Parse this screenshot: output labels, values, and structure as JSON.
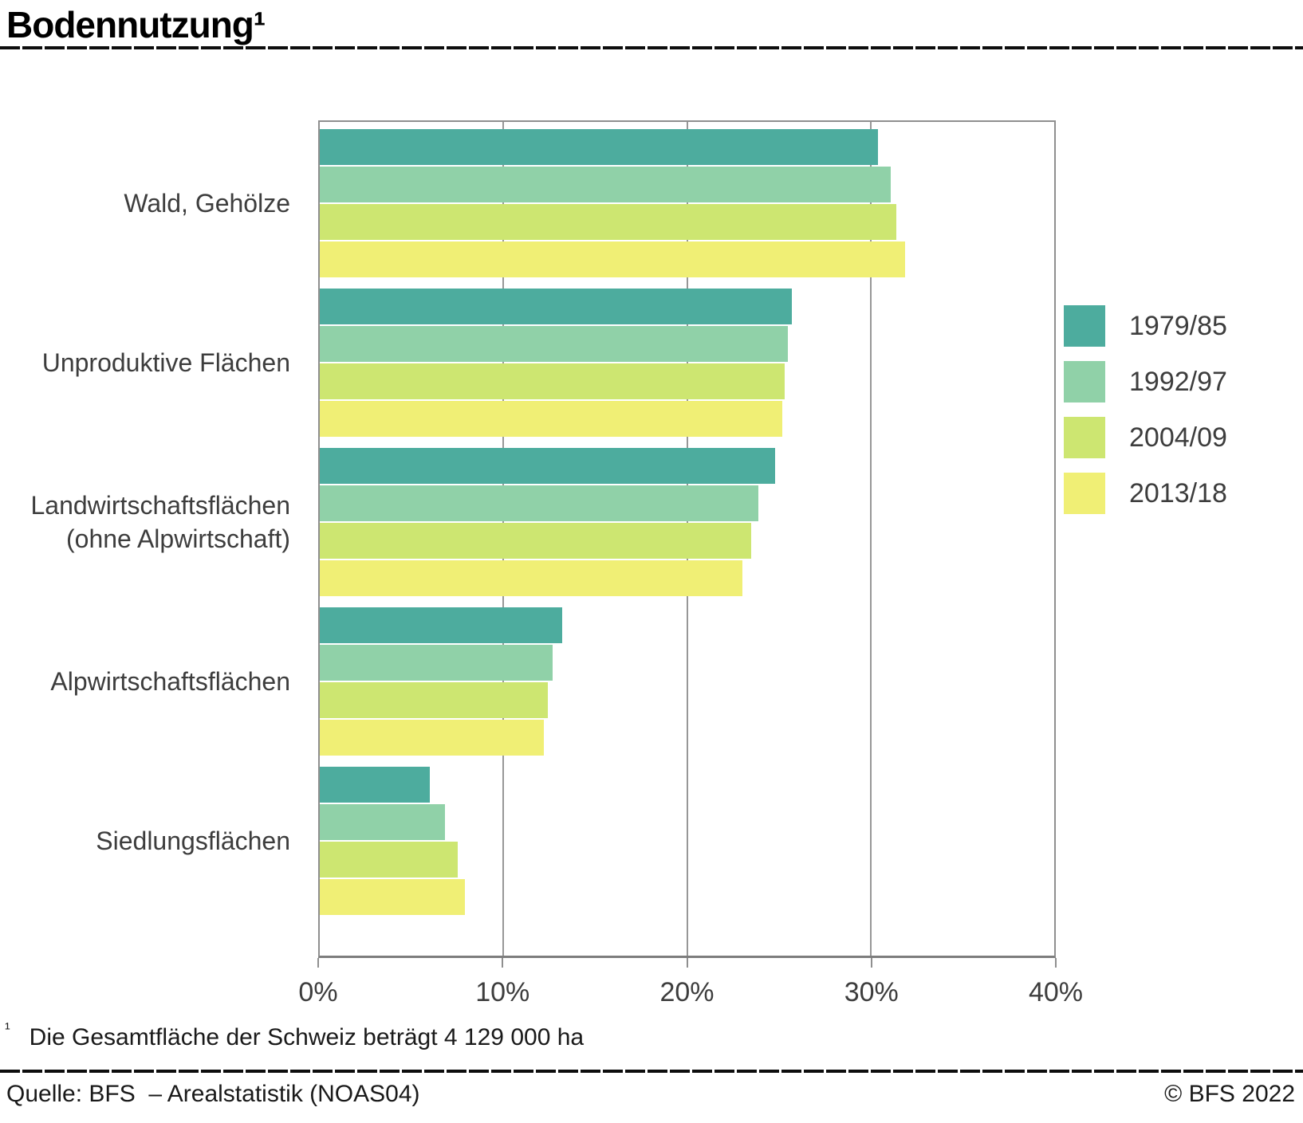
{
  "title": "Bodennutzung¹",
  "footnote": {
    "marker": "¹",
    "text": "Die Gesamtfläche der Schweiz beträgt 4 129 000 ha"
  },
  "footer": {
    "source": "Quelle: BFS  – Arealstatistik (NOAS04)",
    "copyright": "© BFS 2022"
  },
  "colors": {
    "series_1979_85": "#4dac9e",
    "series_1992_97": "#90d1a8",
    "series_2004_09": "#cde671",
    "series_2013_18": "#f0ef75",
    "frame_gray": "#8f8f8f",
    "text_gray": "#3d3d3d"
  },
  "chart_data": {
    "type": "bar",
    "orientation": "horizontal",
    "title": "Bodennutzung¹",
    "xlabel": "",
    "ylabel": "",
    "categories": [
      "Wald, Gehölze",
      "Unproduktive Flächen",
      "Landwirtschaftsflächen\n(ohne Alpwirtschaft)",
      "Alpwirtschaftsflächen",
      "Siedlungsflächen"
    ],
    "series": [
      {
        "name": "1979/85",
        "color": "#4dac9e",
        "values": [
          30.4,
          25.7,
          24.8,
          13.2,
          6.0
        ]
      },
      {
        "name": "1992/97",
        "color": "#90d1a8",
        "values": [
          31.1,
          25.5,
          23.9,
          12.7,
          6.8
        ]
      },
      {
        "name": "2004/09",
        "color": "#cde671",
        "values": [
          31.4,
          25.3,
          23.5,
          12.4,
          7.5
        ]
      },
      {
        "name": "2013/18",
        "color": "#f0ef75",
        "values": [
          31.9,
          25.2,
          23.0,
          12.2,
          7.9
        ]
      }
    ],
    "xlim": [
      0,
      40
    ],
    "xticks": [
      0,
      10,
      20,
      30,
      40
    ],
    "xtick_labels": [
      "0%",
      "10%",
      "20%",
      "30%",
      "40%"
    ],
    "grid": true,
    "legend_position": "right",
    "unit": "percent"
  }
}
